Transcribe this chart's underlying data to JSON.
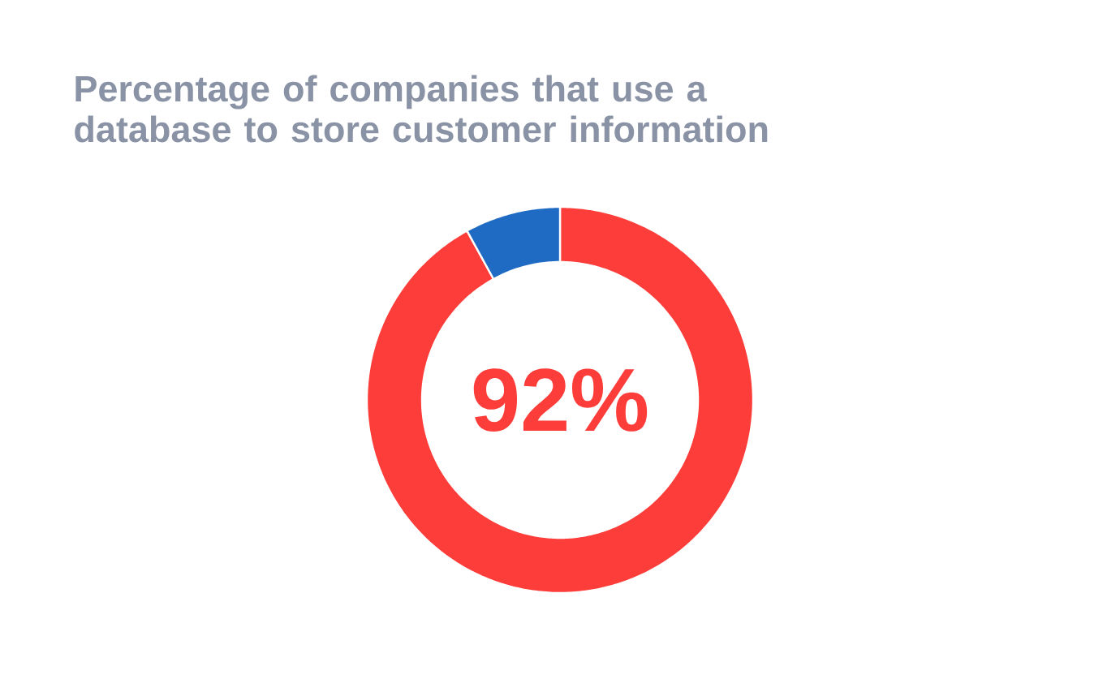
{
  "chart_data": {
    "type": "donut",
    "title": "Percentage of companies that use a database to store customer information",
    "categories": [
      null,
      null
    ],
    "values": [
      92,
      8
    ],
    "colors": [
      "#fc3d3a",
      "#1f6bc3"
    ],
    "value_labels": [
      "92%",
      null
    ]
  }
}
